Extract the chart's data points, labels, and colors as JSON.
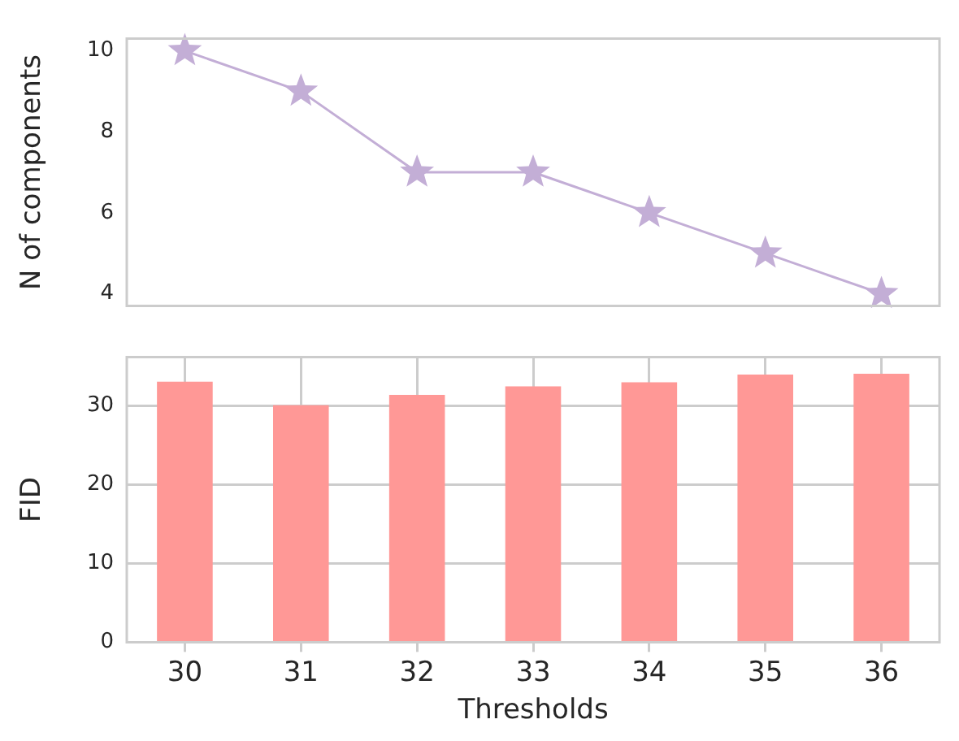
{
  "chart_data": [
    {
      "type": "line",
      "categories": [
        "30",
        "31",
        "32",
        "33",
        "34",
        "35",
        "36"
      ],
      "ylabel": "N of components",
      "series": [
        {
          "color": "#c3aed6",
          "values": [
            10,
            9,
            7,
            7,
            6,
            5,
            4
          ]
        }
      ],
      "ylim": [
        3.7,
        10.3
      ],
      "yticks": [
        4,
        6,
        8,
        10
      ],
      "marker": "star",
      "grid": false,
      "legend": false,
      "tick_labels": "y"
    },
    {
      "type": "bar",
      "categories": [
        "30",
        "31",
        "32",
        "33",
        "34",
        "35",
        "36"
      ],
      "xlabel": "Thresholds",
      "ylabel": "FID",
      "series": [
        {
          "color": "#ff9896",
          "values": [
            33.1,
            30.1,
            31.4,
            32.5,
            33.0,
            34.0,
            34.1
          ]
        }
      ],
      "ylim": [
        0,
        36.2
      ],
      "yticks": [
        0,
        10,
        20,
        30
      ],
      "grid": true,
      "legend": false
    }
  ]
}
